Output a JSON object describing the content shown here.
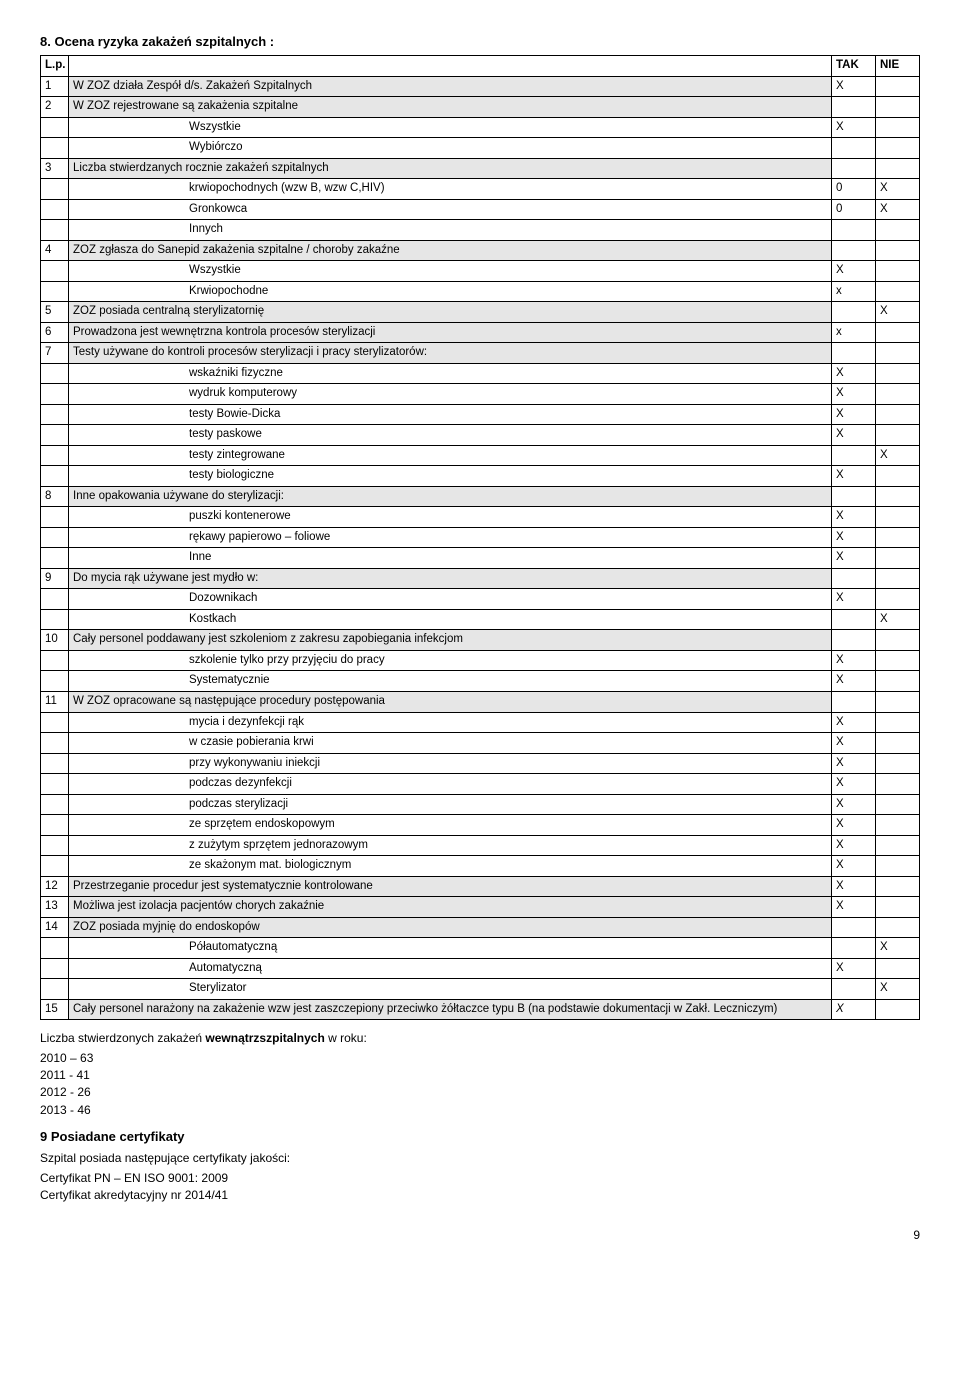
{
  "section8_title": "8. Ocena ryzyka zakażeń szpitalnych :",
  "header": {
    "lp": "L.p.",
    "desc": "",
    "tak": "TAK",
    "nie": "NIE"
  },
  "rows": [
    {
      "lp": "1",
      "desc": "W ZOZ działa Zespół d/s. Zakażeń Szpitalnych",
      "tak": "X",
      "nie": "",
      "shade": true
    },
    {
      "lp": "2",
      "desc": "W ZOZ rejestrowane są zakażenia szpitalne",
      "tak": "",
      "nie": "",
      "shade": true
    },
    {
      "lp": "",
      "desc": "Wszystkie",
      "tak": "X",
      "nie": "",
      "indent": true
    },
    {
      "lp": "",
      "desc": "Wybiórczo",
      "tak": "",
      "nie": "",
      "indent": true
    },
    {
      "lp": "3",
      "desc": "Liczba stwierdzanych rocznie zakażeń szpitalnych",
      "tak": "",
      "nie": "",
      "shade": true
    },
    {
      "lp": "",
      "desc": "krwiopochodnych (wzw B, wzw C,HIV)",
      "tak": "0",
      "nie": "X",
      "indent": true
    },
    {
      "lp": "",
      "desc": "Gronkowca",
      "tak": "0",
      "nie": "X",
      "indent": true
    },
    {
      "lp": "",
      "desc": "Innych",
      "tak": "",
      "nie": "",
      "indent": true
    },
    {
      "lp": "4",
      "desc": "ZOZ zgłasza do Sanepid zakażenia szpitalne / choroby zakaźne",
      "tak": "",
      "nie": "",
      "shade": true
    },
    {
      "lp": "",
      "desc": "Wszystkie",
      "tak": "X",
      "nie": "",
      "indent": true
    },
    {
      "lp": "",
      "desc": "Krwiopochodne",
      "tak": "x",
      "nie": "",
      "indent": true
    },
    {
      "lp": "5",
      "desc": "ZOZ posiada centralną sterylizatornię",
      "tak": "",
      "nie": "X",
      "shade": true
    },
    {
      "lp": "6",
      "desc": "Prowadzona jest wewnętrzna kontrola procesów sterylizacji",
      "tak": "x",
      "nie": "",
      "shade": true
    },
    {
      "lp": "7",
      "desc": "Testy używane do kontroli procesów sterylizacji i pracy sterylizatorów:",
      "tak": "",
      "nie": "",
      "shade": true
    },
    {
      "lp": "",
      "desc": "wskaźniki fizyczne",
      "tak": "X",
      "nie": "",
      "indent": true
    },
    {
      "lp": "",
      "desc": "wydruk komputerowy",
      "tak": "X",
      "nie": "",
      "indent": true
    },
    {
      "lp": "",
      "desc": "testy Bowie-Dicka",
      "tak": "X",
      "nie": "",
      "indent": true
    },
    {
      "lp": "",
      "desc": "testy paskowe",
      "tak": "X",
      "nie": "",
      "indent": true
    },
    {
      "lp": "",
      "desc": "testy zintegrowane",
      "tak": "",
      "nie": "X",
      "indent": true
    },
    {
      "lp": "",
      "desc": "testy biologiczne",
      "tak": "X",
      "nie": "",
      "indent": true
    },
    {
      "lp": "8",
      "desc": "Inne opakowania używane do sterylizacji:",
      "tak": "",
      "nie": "",
      "shade": true
    },
    {
      "lp": "",
      "desc": "puszki kontenerowe",
      "tak": "X",
      "nie": "",
      "indent": true
    },
    {
      "lp": "",
      "desc": "rękawy papierowo – foliowe",
      "tak": "X",
      "nie": "",
      "indent": true
    },
    {
      "lp": "",
      "desc": "Inne",
      "tak": "X",
      "nie": "",
      "indent": true
    },
    {
      "lp": "9",
      "desc": "Do mycia rąk używane jest mydło w:",
      "tak": "",
      "nie": "",
      "shade": true
    },
    {
      "lp": "",
      "desc": "Dozownikach",
      "tak": "X",
      "nie": "",
      "indent": true
    },
    {
      "lp": "",
      "desc": "Kostkach",
      "tak": "",
      "nie": "X",
      "indent": true
    },
    {
      "lp": "10",
      "desc": "Cały personel poddawany jest szkoleniom z zakresu zapobiegania infekcjom",
      "tak": "",
      "nie": "",
      "shade": true
    },
    {
      "lp": "",
      "desc": "szkolenie tylko przy przyjęciu do pracy",
      "tak": "X",
      "nie": "",
      "indent": true
    },
    {
      "lp": "",
      "desc": "Systematycznie",
      "tak": "X",
      "nie": "",
      "indent": true
    },
    {
      "lp": "11",
      "desc": "W ZOZ opracowane są następujące procedury postępowania",
      "tak": "",
      "nie": "",
      "shade": true
    },
    {
      "lp": "",
      "desc": "mycia i dezynfekcji rąk",
      "tak": "X",
      "nie": "",
      "indent": true
    },
    {
      "lp": "",
      "desc": "w czasie pobierania krwi",
      "tak": "X",
      "nie": "",
      "indent": true
    },
    {
      "lp": "",
      "desc": "przy wykonywaniu iniekcji",
      "tak": "X",
      "nie": "",
      "indent": true
    },
    {
      "lp": "",
      "desc": "podczas dezynfekcji",
      "tak": "X",
      "nie": "",
      "indent": true
    },
    {
      "lp": "",
      "desc": "podczas sterylizacji",
      "tak": "X",
      "nie": "",
      "indent": true
    },
    {
      "lp": "",
      "desc": "ze sprzętem endoskopowym",
      "tak": "X",
      "nie": "",
      "indent": true
    },
    {
      "lp": "",
      "desc": "z zużytym sprzętem jednorazowym",
      "tak": "X",
      "nie": "",
      "indent": true
    },
    {
      "lp": "",
      "desc": "ze skażonym mat. biologicznym",
      "tak": "X",
      "nie": "",
      "indent": true
    },
    {
      "lp": "12",
      "desc": "Przestrzeganie procedur jest systematycznie kontrolowane",
      "tak": "X",
      "nie": "",
      "shade": true
    },
    {
      "lp": "13",
      "desc": "Możliwa jest izolacja pacjentów chorych zakaźnie",
      "tak": "X",
      "nie": "",
      "shade": true
    },
    {
      "lp": "14",
      "desc": "ZOZ posiada myjnię do endoskopów",
      "tak": "",
      "nie": "",
      "shade": true
    },
    {
      "lp": "",
      "desc": "Półautomatyczną",
      "tak": "",
      "nie": "X",
      "indent": true
    },
    {
      "lp": "",
      "desc": "Automatyczną",
      "tak": "X",
      "nie": "",
      "indent": true
    },
    {
      "lp": "",
      "desc": "Sterylizator",
      "tak": "",
      "nie": "X",
      "indent": true
    },
    {
      "lp": "15",
      "desc": "Cały personel narażony na zakażenie wzw jest zaszczepiony przeciwko żółtaczce typu B (na podstawie dokumentacji w Zakł. Leczniczym)",
      "tak": "X",
      "nie": "",
      "shade": true,
      "italicTak": true
    }
  ],
  "stats_title": "Liczba stwierdzonych zakażeń wewnątrzszpitalnych w roku:",
  "stats_title_prefix": "Liczba stwierdzonych zakażeń ",
  "stats_title_bold": "wewnątrzszpitalnych",
  "stats_title_suffix": " w roku:",
  "stats": [
    "2010 – 63",
    "2011  - 41",
    "2012 -  26",
    "2013 -  46"
  ],
  "section9_title": "9  Posiadane certyfikaty",
  "certs_intro": "Szpital posiada następujące certyfikaty jakości:",
  "certs": [
    "Certyfikat PN – EN ISO 9001: 2009",
    "Certyfikat akredytacyjny nr 2014/41"
  ],
  "page_number": "9"
}
